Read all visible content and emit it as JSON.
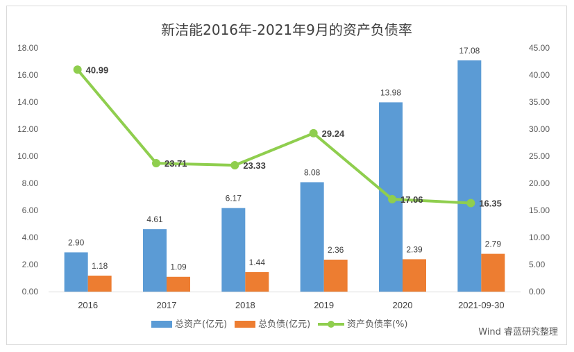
{
  "chart_data": {
    "type": "bar",
    "title": "新洁能2016年-2021年9月的资产负债率",
    "categories": [
      "2016",
      "2017",
      "2018",
      "2019",
      "2020",
      "2021-09-30"
    ],
    "series": [
      {
        "name": "总资产(亿元)",
        "type": "bar",
        "axis": "left",
        "color": "#5b9bd5",
        "values": [
          2.9,
          4.61,
          6.17,
          8.08,
          13.98,
          17.08
        ],
        "labels": [
          "2.90",
          "4.61",
          "6.17",
          "8.08",
          "13.98",
          "17.08"
        ]
      },
      {
        "name": "总负债(亿元)",
        "type": "bar",
        "axis": "left",
        "color": "#ed7d31",
        "values": [
          1.18,
          1.09,
          1.44,
          2.36,
          2.39,
          2.79
        ],
        "labels": [
          "1.18",
          "1.09",
          "1.44",
          "2.36",
          "2.39",
          "2.79"
        ]
      },
      {
        "name": "资产负债率(%)",
        "type": "line",
        "axis": "right",
        "color": "#8fce4e",
        "values": [
          40.99,
          23.71,
          23.33,
          29.24,
          17.06,
          16.35
        ],
        "labels": [
          "40.99",
          "23.71",
          "23.33",
          "29.24",
          "17.06",
          "16.35"
        ]
      }
    ],
    "y_left": {
      "range": [
        0,
        18
      ],
      "ticks": [
        "0.00",
        "2.00",
        "4.00",
        "6.00",
        "8.00",
        "10.00",
        "12.00",
        "14.00",
        "16.00",
        "18.00"
      ]
    },
    "y_right": {
      "range": [
        0,
        45
      ],
      "ticks": [
        "0.00",
        "5.00",
        "10.00",
        "15.00",
        "20.00",
        "25.00",
        "30.00",
        "35.00",
        "40.00",
        "45.00"
      ]
    },
    "grid": false,
    "legend_position": "bottom",
    "source": "Wind 睿蓝研究整理"
  }
}
